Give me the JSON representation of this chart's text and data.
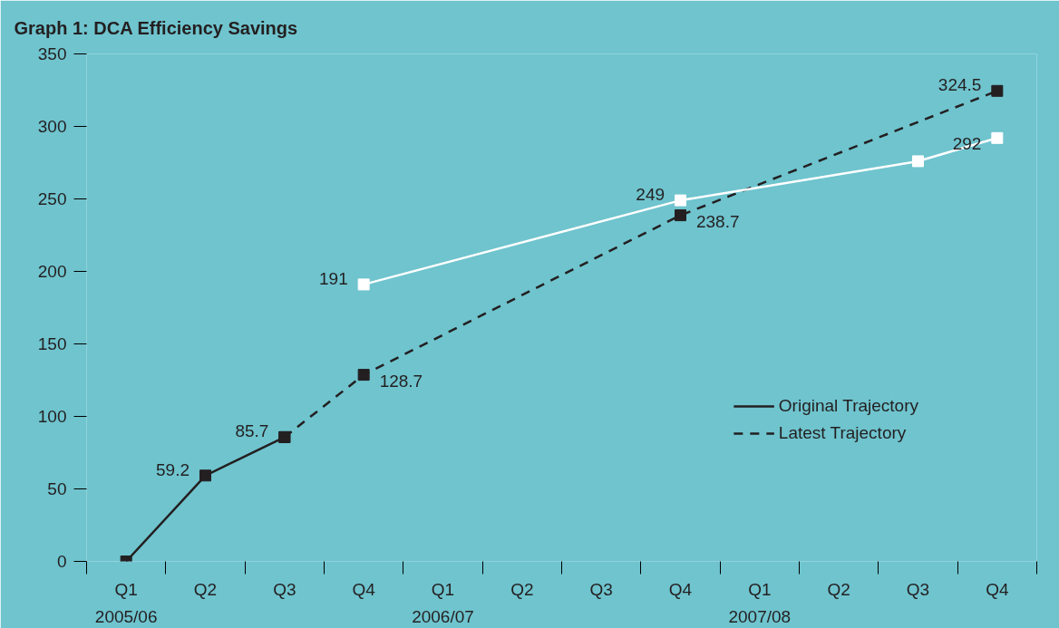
{
  "chart_data": {
    "type": "line",
    "title": "Graph 1: DCA Efficiency Savings",
    "categories": [
      "Q1",
      "Q2",
      "Q3",
      "Q4",
      "Q1",
      "Q2",
      "Q3",
      "Q4",
      "Q1",
      "Q2",
      "Q3",
      "Q4"
    ],
    "annotations": [
      "2005/06",
      "2006/07",
      "2007/08"
    ],
    "ylim": [
      0,
      350
    ],
    "yticks": [
      0,
      50,
      100,
      150,
      200,
      250,
      300,
      350
    ],
    "grid": false,
    "legend": "bottom right",
    "marker": "square",
    "series": [
      {
        "name": "Original Trajectory",
        "color": "#231f20",
        "line_style": "solid",
        "values": [
          0,
          59.2,
          85.7,
          null,
          null,
          null,
          null,
          null,
          null,
          null,
          null,
          null
        ],
        "value_labels": [
          null,
          "59.2",
          "85.7",
          null,
          null,
          null,
          null,
          null,
          null,
          null,
          null,
          null
        ]
      },
      {
        "name": "Latest Trajectory",
        "color": "#231f20",
        "line_style": "dashed",
        "values": [
          null,
          null,
          85.7,
          128.7,
          null,
          null,
          null,
          238.7,
          null,
          null,
          null,
          324.5
        ],
        "value_labels": [
          null,
          null,
          null,
          "128.7",
          null,
          null,
          null,
          "238.7",
          null,
          null,
          null,
          "324.5"
        ]
      },
      {
        "color": "#ffffff",
        "line_style": "solid",
        "values": [
          null,
          null,
          null,
          191,
          null,
          null,
          null,
          249,
          null,
          null,
          276,
          292
        ],
        "value_labels": [
          null,
          null,
          null,
          "191",
          null,
          null,
          null,
          "249",
          null,
          null,
          null,
          "292"
        ]
      }
    ]
  }
}
